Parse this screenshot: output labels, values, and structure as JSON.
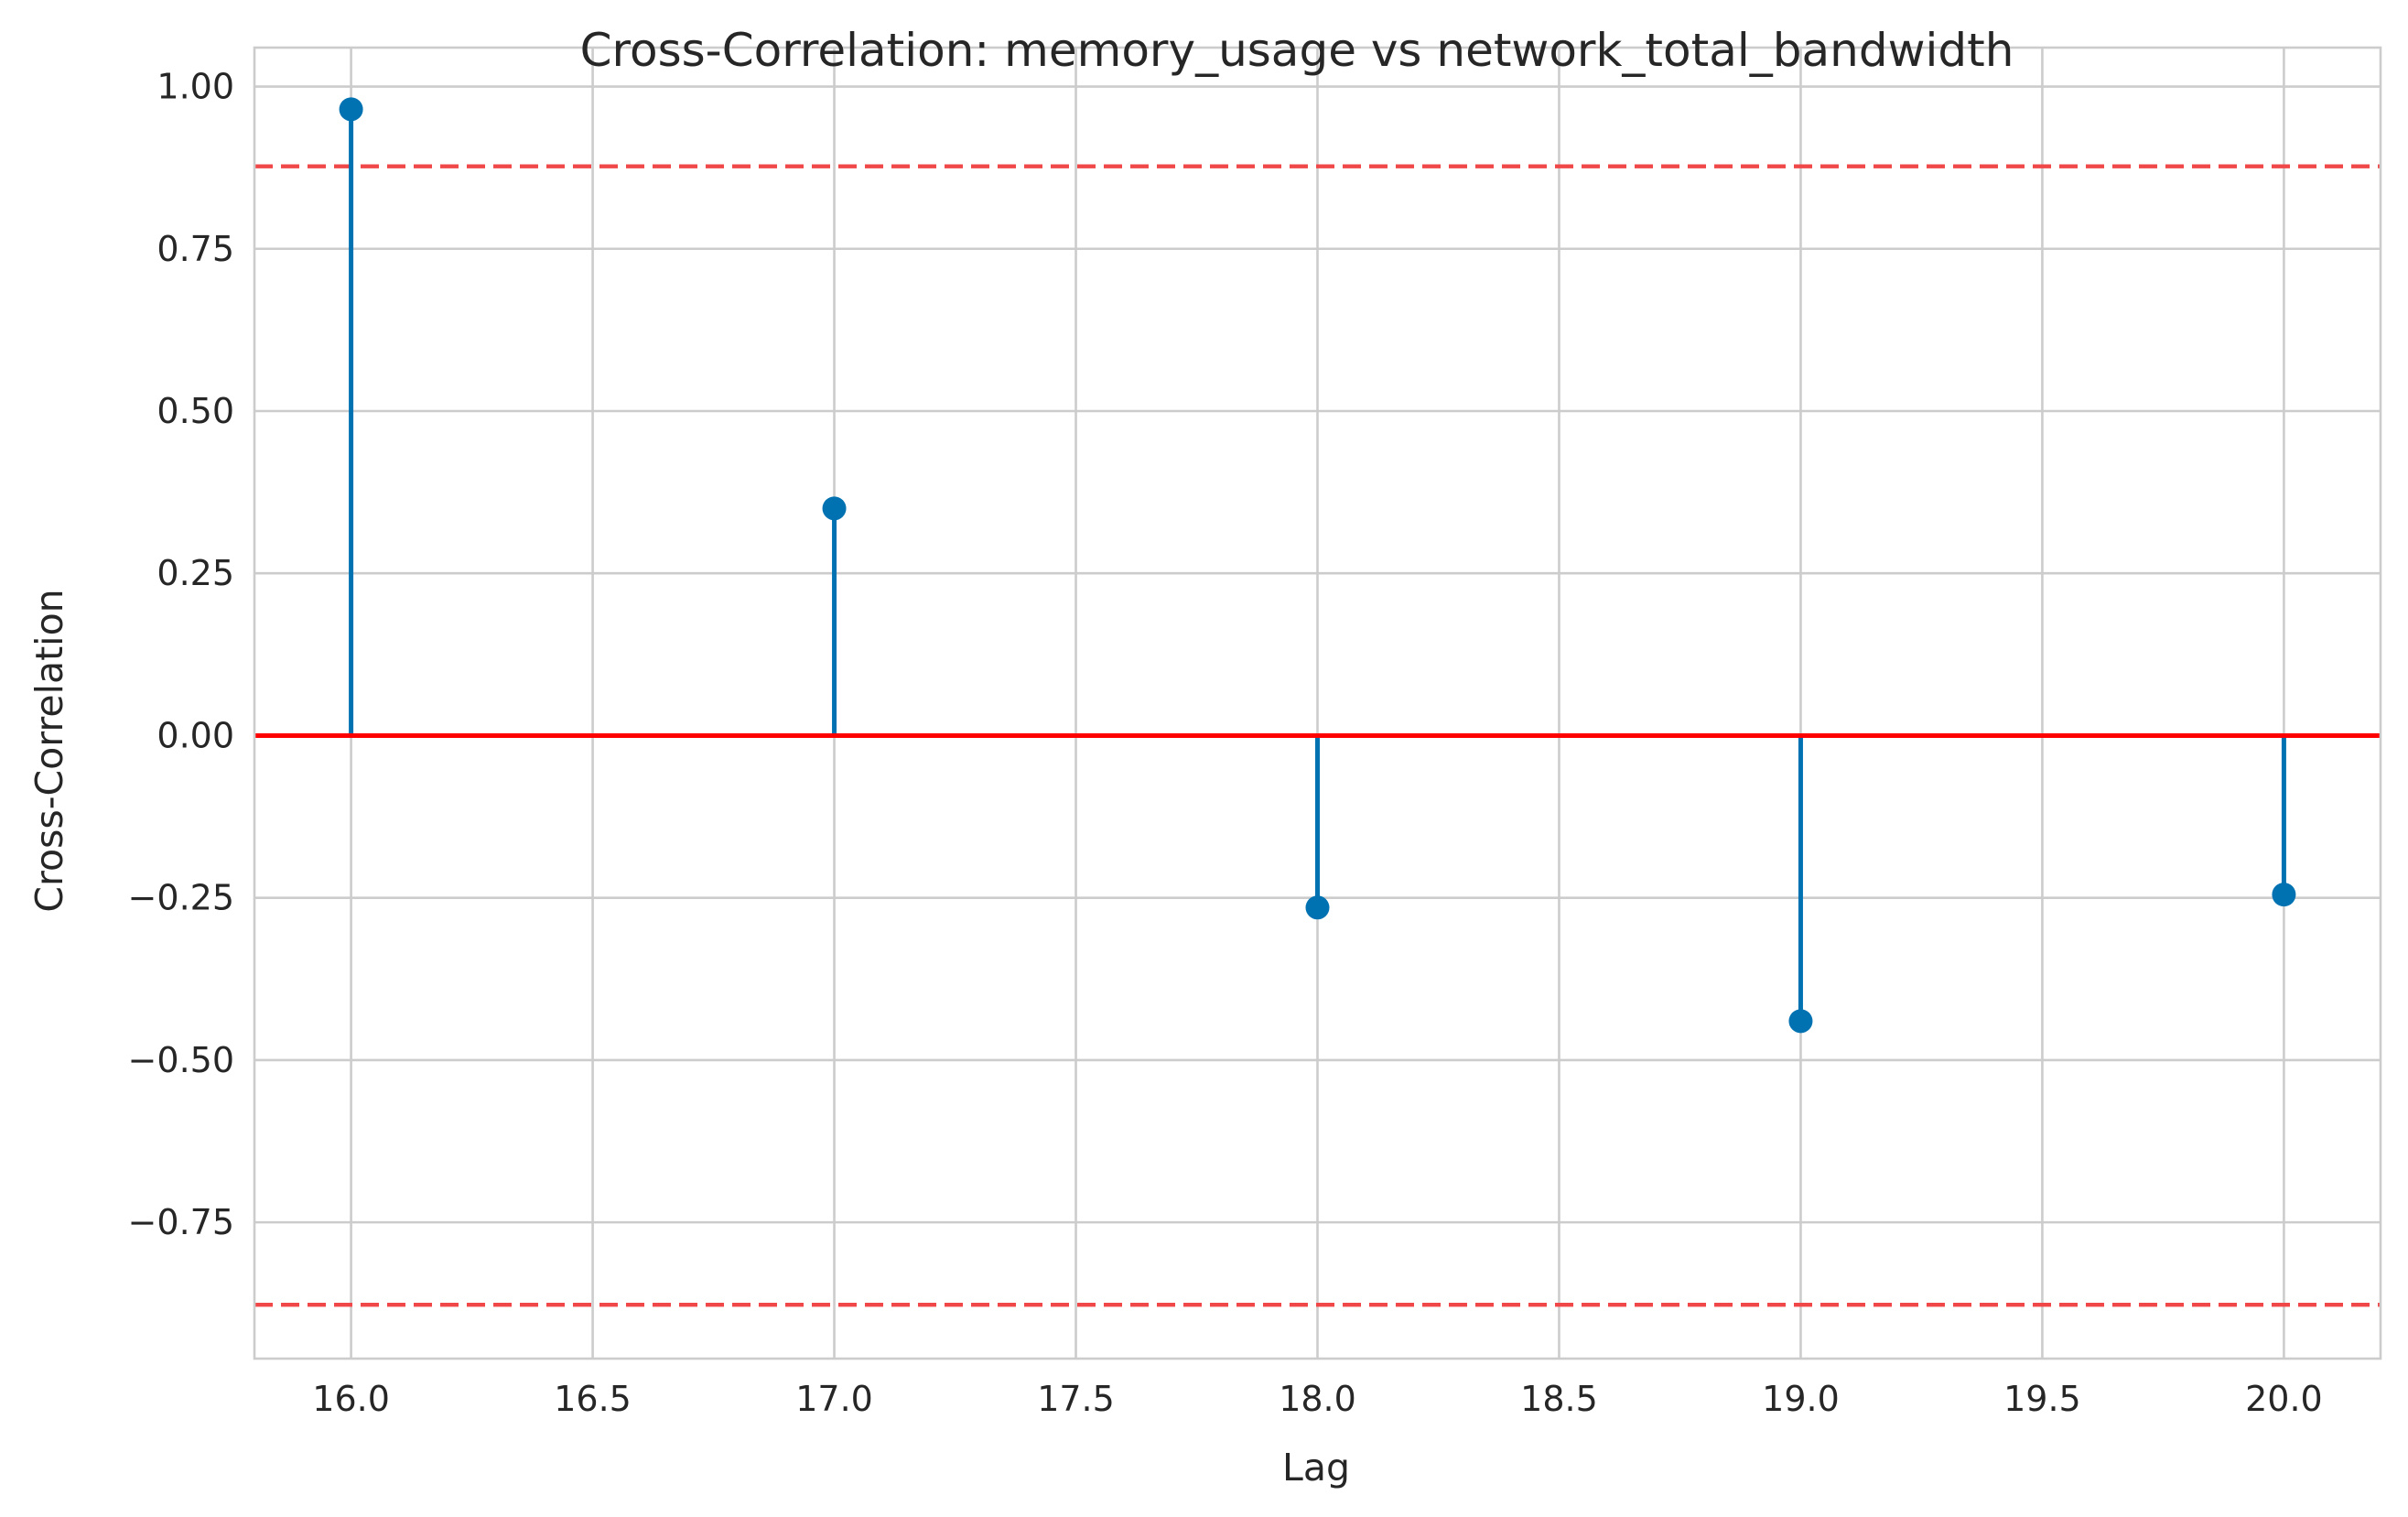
{
  "chart_data": {
    "type": "stem",
    "title": "Cross-Correlation: memory_usage vs network_total_bandwidth",
    "xlabel": "Lag",
    "ylabel": "Cross-Correlation",
    "x": [
      16.0,
      17.0,
      18.0,
      19.0,
      20.0
    ],
    "values": [
      0.965,
      0.35,
      -0.265,
      -0.44,
      -0.245
    ],
    "xlim": [
      15.8,
      20.2
    ],
    "ylim": [
      -0.96,
      1.06
    ],
    "x_ticks": [
      16.0,
      16.5,
      17.0,
      17.5,
      18.0,
      18.5,
      19.0,
      19.5,
      20.0
    ],
    "x_tick_labels": [
      "16.0",
      "16.5",
      "17.0",
      "17.5",
      "18.0",
      "18.5",
      "19.0",
      "19.5",
      "20.0"
    ],
    "y_ticks": [
      1.0,
      0.75,
      0.5,
      0.25,
      0.0,
      -0.25,
      -0.5,
      -0.75
    ],
    "y_tick_labels": [
      "1.00",
      "0.75",
      "0.50",
      "0.25",
      "0.00",
      "−0.25",
      "−0.50",
      "−0.75"
    ],
    "zero_line": 0.0,
    "confidence_bounds": [
      0.877,
      -0.877
    ],
    "grid": true,
    "colors": {
      "stem": "#0072b2",
      "zero_line": "#ff0000",
      "confidence": "#f04848"
    }
  }
}
